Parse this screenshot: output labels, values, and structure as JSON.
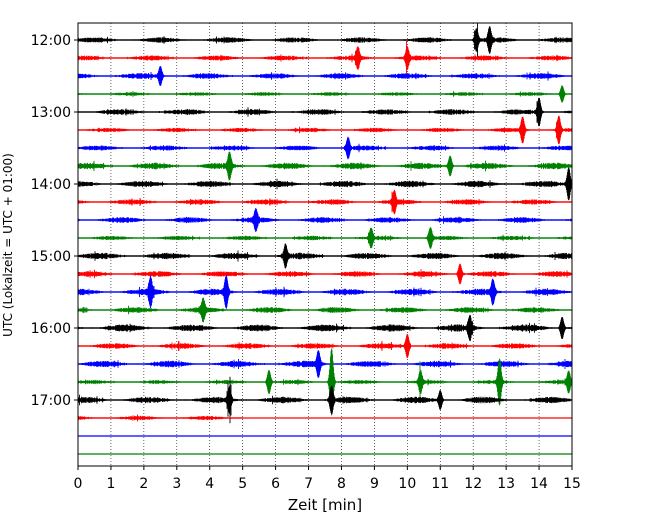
{
  "chart_data": {
    "type": "line",
    "subtype": "seismogram-helicorder",
    "xlabel": "Zeit  [min]",
    "ylabel": "UTC (Lokalzeit = UTC + 01:00)",
    "xlim": [
      0,
      15
    ],
    "xticks": [
      0,
      1,
      2,
      3,
      4,
      5,
      6,
      7,
      8,
      9,
      10,
      11,
      12,
      13,
      14,
      15
    ],
    "xgrid": "dotted vertical lines at each minute",
    "ytick_labels": [
      "12:00",
      "13:00",
      "14:00",
      "15:00",
      "16:00",
      "17:00"
    ],
    "trace_colors": [
      "#000000",
      "#ff0000",
      "#0000ff",
      "#008000"
    ],
    "traces": [
      {
        "start": "12:00",
        "color": "#000000",
        "amplitude": 0.75,
        "recorded_until_min": 15,
        "events": [
          [
            12.1,
            1.3
          ],
          [
            12.5,
            1.4
          ]
        ]
      },
      {
        "start": "12:15",
        "color": "#ff0000",
        "amplitude": 0.7,
        "recorded_until_min": 15,
        "events": [
          [
            8.5,
            1.2
          ],
          [
            10.0,
            1.2
          ]
        ]
      },
      {
        "start": "12:30",
        "color": "#0000ff",
        "amplitude": 0.8,
        "recorded_until_min": 15,
        "events": [
          [
            2.5,
            1.1
          ]
        ]
      },
      {
        "start": "12:45",
        "color": "#008000",
        "amplitude": 0.5,
        "recorded_until_min": 15,
        "events": [
          [
            14.7,
            1.0
          ]
        ]
      },
      {
        "start": "13:00",
        "color": "#000000",
        "amplitude": 0.8,
        "recorded_until_min": 15,
        "events": [
          [
            14.0,
            1.6
          ]
        ]
      },
      {
        "start": "13:15",
        "color": "#ff0000",
        "amplitude": 0.6,
        "recorded_until_min": 15,
        "events": [
          [
            13.5,
            1.5
          ],
          [
            14.6,
            1.6
          ]
        ]
      },
      {
        "start": "13:30",
        "color": "#0000ff",
        "amplitude": 0.7,
        "recorded_until_min": 15,
        "events": [
          [
            8.2,
            1.2
          ]
        ]
      },
      {
        "start": "13:45",
        "color": "#008000",
        "amplitude": 0.9,
        "recorded_until_min": 15,
        "events": [
          [
            4.6,
            1.5
          ],
          [
            11.3,
            1.2
          ]
        ]
      },
      {
        "start": "14:00",
        "color": "#000000",
        "amplitude": 0.9,
        "recorded_until_min": 15,
        "events": [
          [
            14.9,
            1.9
          ]
        ]
      },
      {
        "start": "14:15",
        "color": "#ff0000",
        "amplitude": 0.75,
        "recorded_until_min": 15,
        "events": [
          [
            9.6,
            1.2
          ]
        ]
      },
      {
        "start": "14:30",
        "color": "#0000ff",
        "amplitude": 0.8,
        "recorded_until_min": 15,
        "events": [
          [
            5.4,
            1.2
          ]
        ]
      },
      {
        "start": "14:45",
        "color": "#008000",
        "amplitude": 0.6,
        "recorded_until_min": 15,
        "events": [
          [
            8.9,
            1.1
          ],
          [
            10.7,
            1.2
          ]
        ]
      },
      {
        "start": "15:00",
        "color": "#000000",
        "amplitude": 0.9,
        "recorded_until_min": 15,
        "events": [
          [
            6.3,
            1.3
          ]
        ]
      },
      {
        "start": "15:15",
        "color": "#ff0000",
        "amplitude": 0.8,
        "recorded_until_min": 15,
        "events": [
          [
            11.6,
            1.2
          ]
        ]
      },
      {
        "start": "15:30",
        "color": "#0000ff",
        "amplitude": 0.9,
        "recorded_until_min": 15,
        "events": [
          [
            2.2,
            1.6
          ],
          [
            4.5,
            1.8
          ],
          [
            12.6,
            1.4
          ]
        ]
      },
      {
        "start": "15:45",
        "color": "#008000",
        "amplitude": 0.8,
        "recorded_until_min": 15,
        "events": [
          [
            3.8,
            1.2
          ]
        ]
      },
      {
        "start": "16:00",
        "color": "#000000",
        "amplitude": 1.0,
        "recorded_until_min": 15,
        "events": [
          [
            11.9,
            1.3
          ],
          [
            14.7,
            1.3
          ]
        ]
      },
      {
        "start": "16:15",
        "color": "#ff0000",
        "amplitude": 0.8,
        "recorded_until_min": 15,
        "events": [
          [
            10.0,
            1.4
          ]
        ]
      },
      {
        "start": "16:30",
        "color": "#0000ff",
        "amplitude": 0.9,
        "recorded_until_min": 15,
        "events": [
          [
            7.3,
            1.5
          ]
        ]
      },
      {
        "start": "16:45",
        "color": "#008000",
        "amplitude": 0.55,
        "recorded_until_min": 15,
        "events": [
          [
            5.8,
            1.4
          ],
          [
            7.7,
            4.0
          ],
          [
            10.4,
            1.3
          ],
          [
            12.8,
            2.6
          ],
          [
            14.9,
            1.2
          ]
        ]
      },
      {
        "start": "17:00",
        "color": "#000000",
        "amplitude": 0.9,
        "recorded_until_min": 15,
        "events": [
          [
            4.6,
            1.4
          ],
          [
            7.7,
            1.6
          ],
          [
            11.0,
            1.1
          ]
        ]
      },
      {
        "start": "17:15",
        "color": "#ff0000",
        "amplitude": 0.6,
        "recorded_until_min": 5.0,
        "events": []
      },
      {
        "start": "17:30",
        "color": "#0000ff",
        "amplitude": 0.0,
        "recorded_until_min": 0,
        "events": []
      },
      {
        "start": "17:45",
        "color": "#008000",
        "amplitude": 0.0,
        "recorded_until_min": 0,
        "events": []
      }
    ]
  }
}
